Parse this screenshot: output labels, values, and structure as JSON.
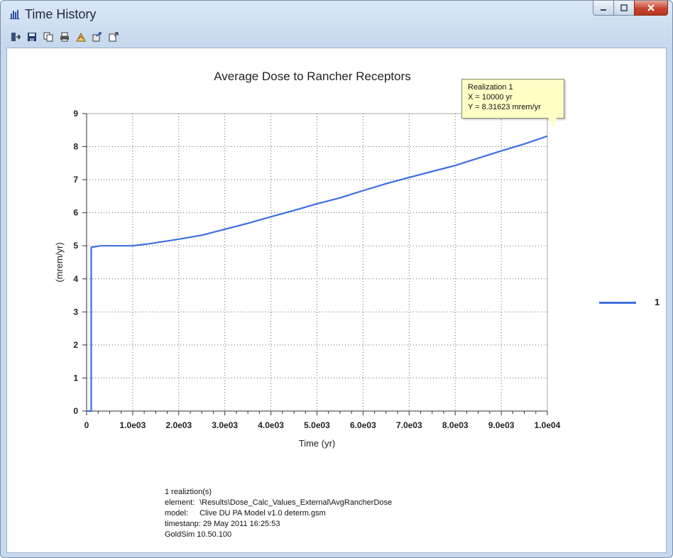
{
  "window": {
    "title": "Time History",
    "controls": [
      "minimize",
      "maximize",
      "close"
    ]
  },
  "toolbar": {
    "icons": [
      "import-icon",
      "save-icon",
      "copy-icon",
      "print-icon",
      "chart-properties-icon",
      "export-icon",
      "external-window-icon"
    ]
  },
  "tooltip": {
    "line1": "Realization  1",
    "line2": "X = 10000 yr",
    "line3": "Y = 8.31623 mrem/yr"
  },
  "legend": {
    "label": "1",
    "color": "#3f6fe0"
  },
  "info": {
    "realizations": "1 realiztion(s)",
    "element_key": "element:",
    "element_val": "\\Results\\Dose_Calc_Values_External\\AvgRancherDose",
    "model_key": "model:",
    "model_val": "Clive DU PA Model v1.0 determ.gsm",
    "timestamp_key": "timestanp:",
    "timestamp_val": "29 May 2011 16:25:53",
    "version": "GoldSim 10.50.100"
  },
  "chart_data": {
    "type": "line",
    "title": "Average Dose to Rancher Receptors",
    "xlabel": "Time (yr)",
    "ylabel": "(mrem/yr)",
    "xlim": [
      0,
      10000
    ],
    "ylim": [
      0,
      9
    ],
    "x_ticks": [
      0,
      1000,
      2000,
      3000,
      4000,
      5000,
      6000,
      7000,
      8000,
      9000,
      10000
    ],
    "x_tick_labels": [
      "0",
      "1.0e03",
      "2.0e03",
      "3.0e03",
      "4.0e03",
      "5.0e03",
      "6.0e03",
      "7.0e03",
      "8.0e03",
      "9.0e03",
      "1.0e04"
    ],
    "y_ticks": [
      0,
      1,
      2,
      3,
      4,
      5,
      6,
      7,
      8,
      9
    ],
    "y_tick_labels": [
      "0",
      "1",
      "2",
      "3",
      "4",
      "5",
      "6",
      "7",
      "8",
      "9"
    ],
    "grid": true,
    "legend_position": "right",
    "series": [
      {
        "name": "1",
        "color": "#3f6fe0",
        "x": [
          0,
          100,
          100,
          300,
          1000,
          1300,
          2000,
          2500,
          3000,
          3500,
          4000,
          4500,
          5000,
          5500,
          6000,
          6500,
          7000,
          7500,
          8000,
          8500,
          9000,
          9500,
          10000
        ],
        "y": [
          0,
          0,
          4.95,
          5.0,
          5.0,
          5.05,
          5.2,
          5.32,
          5.5,
          5.68,
          5.88,
          6.07,
          6.27,
          6.45,
          6.67,
          6.88,
          7.07,
          7.25,
          7.43,
          7.65,
          7.87,
          8.08,
          8.31623
        ]
      }
    ]
  }
}
